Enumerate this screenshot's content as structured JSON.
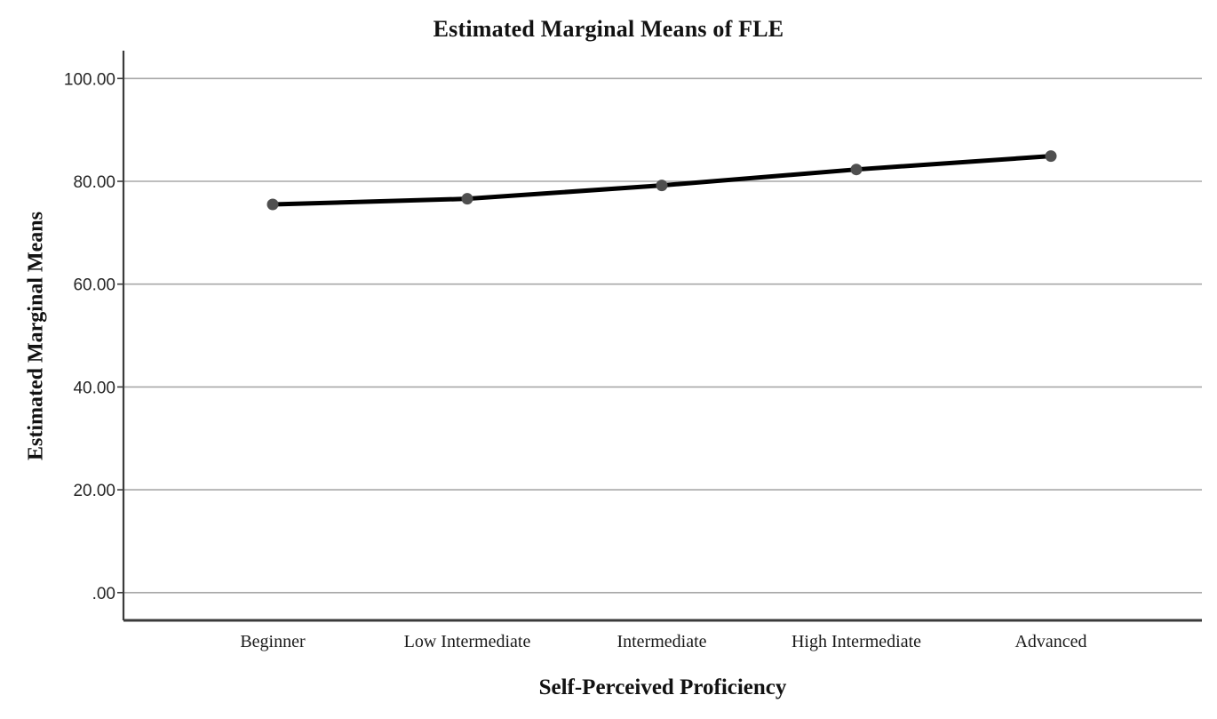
{
  "figure": {
    "title": "Estimated Marginal Means of FLE",
    "x_axis_title": "Self-Perceived Proficiency",
    "y_axis_title": "Estimated Marginal Means"
  },
  "chart_data": {
    "type": "line",
    "title": "Estimated Marginal Means of FLE",
    "xlabel": "Self-Perceived Proficiency",
    "ylabel": "Estimated Marginal Means",
    "categories": [
      "Beginner",
      "Low Intermediate",
      "Intermediate",
      "High Intermediate",
      "Advanced"
    ],
    "series": [
      {
        "name": "Estimated Marginal Means of FLE",
        "values": [
          75.5,
          76.6,
          79.2,
          82.3,
          84.9
        ]
      }
    ],
    "yticks": {
      "labels": [
        ".00",
        "20.00",
        "40.00",
        "60.00",
        "80.00",
        "100.00"
      ],
      "values": [
        0,
        20,
        40,
        60,
        80,
        100
      ]
    },
    "ylim": [
      0,
      100
    ],
    "grid": "horizontal",
    "legend": "none",
    "colors": {
      "line": "#000000",
      "marker": "#4f4f4f",
      "gridline": "#a8a8a8",
      "axis": "#3b3b3b",
      "tick_text": "#262626",
      "background": "#ffffff"
    }
  }
}
